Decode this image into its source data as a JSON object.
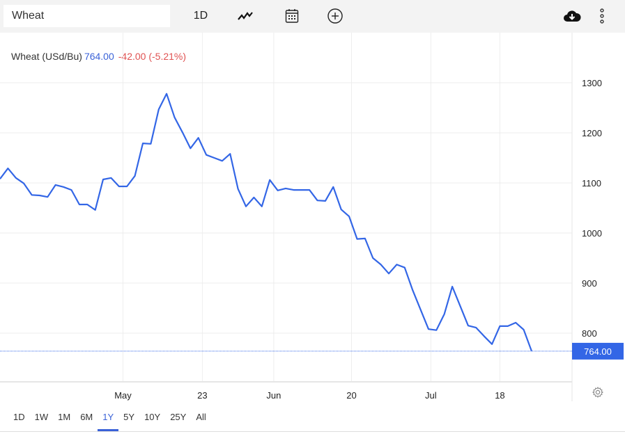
{
  "toolbar": {
    "search_value": "Wheat",
    "interval_label": "1D",
    "icons": [
      "line-chart-icon",
      "calendar-icon",
      "add-circle-icon",
      "cloud-download-icon",
      "more-vertical-icon"
    ]
  },
  "legend": {
    "name": "Wheat (USd/Bu)",
    "price": "764.00",
    "change": "-42.00 (-5.21%)",
    "change_color": "#e05252",
    "price_color": "#3a62d8"
  },
  "ranges": {
    "items": [
      "1D",
      "1W",
      "1M",
      "6M",
      "1Y",
      "5Y",
      "10Y",
      "25Y",
      "All"
    ],
    "active": "1Y"
  },
  "chart_data": {
    "type": "line",
    "line_color": "#3366e6",
    "ylim": [
      670,
      1390
    ],
    "y_ticks": [
      800,
      900,
      1000,
      1100,
      1200,
      1300
    ],
    "y_tick_labels": [
      "800",
      "900",
      "1000",
      "1100",
      "1200",
      "1300"
    ],
    "x_ticks": [
      {
        "label": "May",
        "at": 15.5
      },
      {
        "label": "23",
        "at": 25.5
      },
      {
        "label": "Jun",
        "at": 34.5
      },
      {
        "label": "20",
        "at": 44.3
      },
      {
        "label": "Jul",
        "at": 54.3
      },
      {
        "label": "18",
        "at": 63.0
      }
    ],
    "last_price_label": "764.00",
    "last_price": 764,
    "grid": true,
    "values": [
      1108,
      1129,
      1110,
      1099,
      1076,
      1075,
      1072,
      1096,
      1092,
      1086,
      1057,
      1057,
      1046,
      1107,
      1110,
      1093,
      1093,
      1114,
      1179,
      1178,
      1247,
      1278,
      1231,
      1201,
      1169,
      1190,
      1156,
      1150,
      1144,
      1158,
      1088,
      1053,
      1071,
      1053,
      1106,
      1085,
      1089,
      1086,
      1086,
      1086,
      1065,
      1064,
      1092,
      1047,
      1033,
      988,
      989,
      950,
      937,
      919,
      937,
      931,
      886,
      847,
      808,
      806,
      838,
      893,
      854,
      815,
      811,
      794,
      778,
      814,
      814,
      821,
      807,
      764
    ]
  }
}
